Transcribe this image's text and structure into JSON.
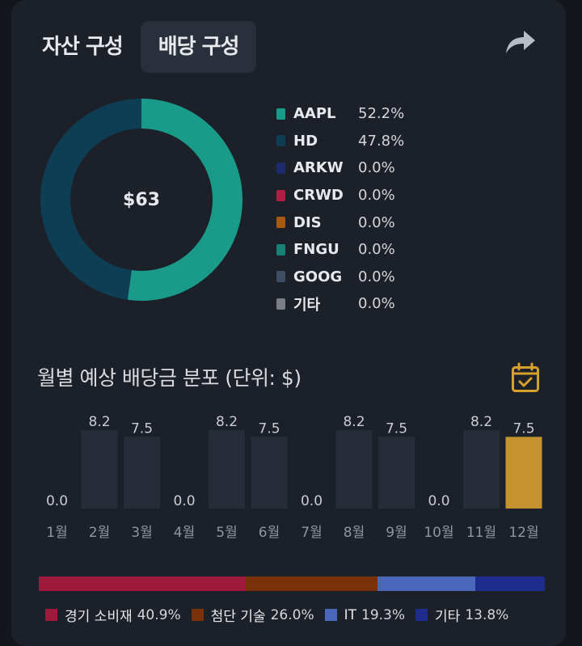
{
  "tabs": [
    {
      "label": "자산 구성",
      "active": false
    },
    {
      "label": "배당 구성",
      "active": true
    }
  ],
  "icons": {
    "share": "share-icon",
    "calendar": "calendar-check-icon"
  },
  "colors": {
    "background": "#14161c",
    "card": "#1c2029",
    "bar_default": "#262c38",
    "bar_highlight": "#c4922e",
    "accent_icon": "#d8a02c"
  },
  "donut": {
    "center_label": "$63"
  },
  "legend": [
    {
      "name": "AAPL",
      "pct": "52.2%",
      "color": "#1a9b8a"
    },
    {
      "name": "HD",
      "pct": "47.8%",
      "color": "#0e3e54"
    },
    {
      "name": "ARKW",
      "pct": "0.0%",
      "color": "#1e2a6e"
    },
    {
      "name": "CRWD",
      "pct": "0.0%",
      "color": "#b01e44"
    },
    {
      "name": "DIS",
      "pct": "0.0%",
      "color": "#a85a10"
    },
    {
      "name": "FNGU",
      "pct": "0.0%",
      "color": "#168276"
    },
    {
      "name": "GOOG",
      "pct": "0.0%",
      "color": "#3d4d63"
    },
    {
      "name": "기타",
      "pct": "0.0%",
      "color": "#7a7d83"
    }
  ],
  "monthly_title": "월별 예상 배당금 분포 (단위: $)",
  "sector": {
    "items": [
      {
        "name": "경기 소비재",
        "pct": "40.9%",
        "value": 40.9,
        "color": "#9e1a3c"
      },
      {
        "name": "첨단 기술",
        "pct": "26.0%",
        "value": 26.0,
        "color": "#7a3008"
      },
      {
        "name": "IT",
        "pct": "19.3%",
        "value": 19.3,
        "color": "#4a66b8"
      },
      {
        "name": "기타",
        "pct": "13.8%",
        "value": 13.8,
        "color": "#1e2d8c"
      }
    ]
  },
  "chart_data": [
    {
      "type": "pie",
      "categories": [
        "AAPL",
        "HD",
        "ARKW",
        "CRWD",
        "DIS",
        "FNGU",
        "GOOG",
        "기타"
      ],
      "values": [
        52.2,
        47.8,
        0.0,
        0.0,
        0.0,
        0.0,
        0.0,
        0.0
      ],
      "title": "$63"
    },
    {
      "type": "bar",
      "title": "월별 예상 배당금 분포 (단위: $)",
      "categories": [
        "1월",
        "2월",
        "3월",
        "4월",
        "5월",
        "6월",
        "7월",
        "8월",
        "9월",
        "10월",
        "11월",
        "12월"
      ],
      "values": [
        0.0,
        8.2,
        7.5,
        0.0,
        8.2,
        7.5,
        0.0,
        8.2,
        7.5,
        0.0,
        8.2,
        7.5
      ],
      "value_labels": [
        "0.0",
        "8.2",
        "7.5",
        "0.0",
        "8.2",
        "7.5",
        "0.0",
        "8.2",
        "7.5",
        "0.0",
        "8.2",
        "7.5"
      ],
      "highlight_index": 11,
      "ylim": [
        0,
        8.2
      ]
    }
  ]
}
